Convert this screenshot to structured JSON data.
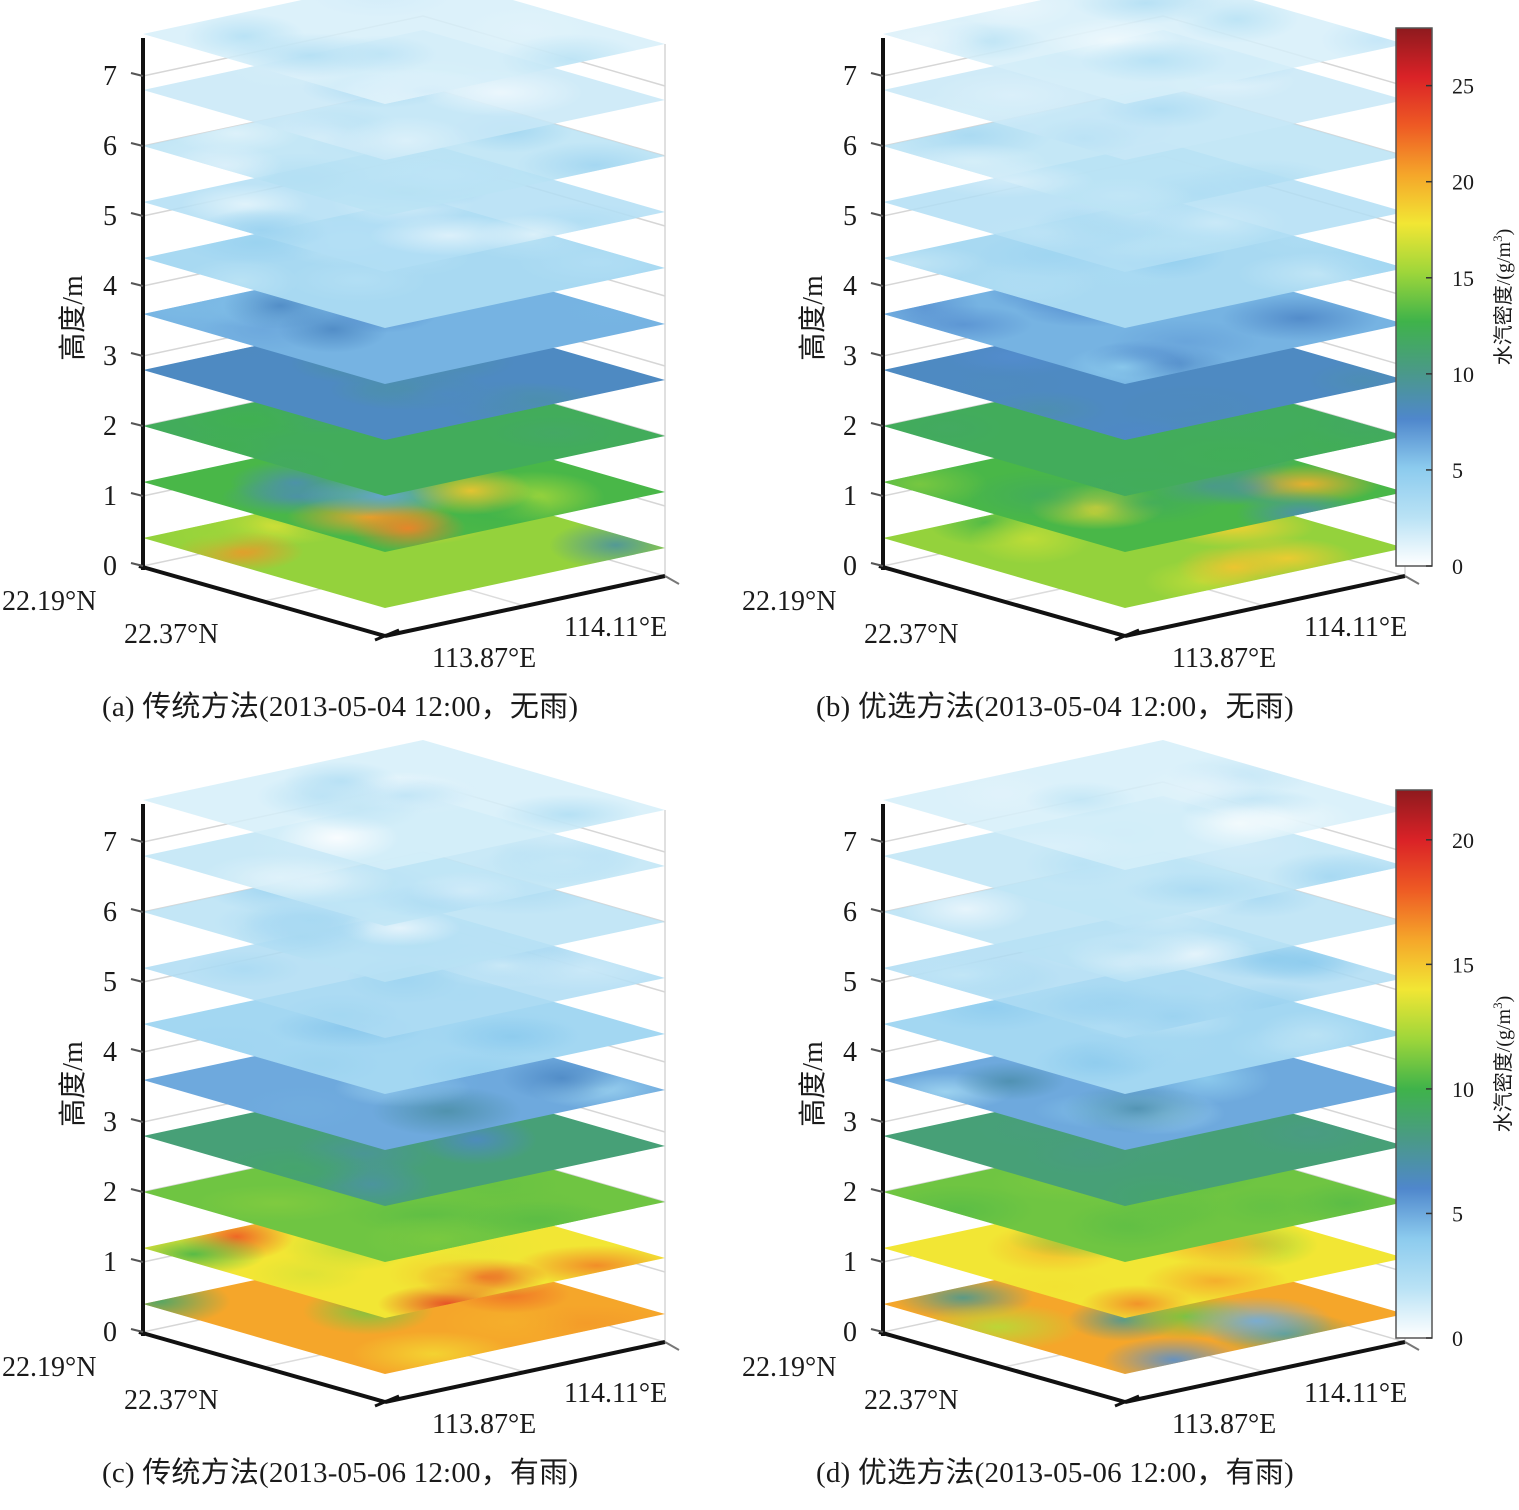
{
  "figure": {
    "colormap": [
      "#ffffff",
      "#b9e2f5",
      "#8ccbee",
      "#4f87cc",
      "#4a9a86",
      "#3fb34a",
      "#9ed63a",
      "#f2e634",
      "#f5a62a",
      "#ee5a24",
      "#da2227",
      "#8e1a1e"
    ]
  },
  "chart_data": [
    {
      "id": "a",
      "type": "heatmap",
      "subtype": "3d-stacked-slices",
      "caption": "(a) 传统方法(2013-05-04 12:00，无雨)",
      "method": "传统方法",
      "datetime": "2013-05-04 12:00",
      "weather": "无雨",
      "zlabel": "高度/m",
      "z_ticks": [
        "0",
        "1",
        "2",
        "3",
        "4",
        "5",
        "6",
        "7"
      ],
      "zlim": [
        0,
        7.6
      ],
      "lat_ticks": [
        "22.19°N",
        "22.37°N"
      ],
      "lon_ticks": [
        "113.87°E",
        "114.11°E"
      ],
      "clim": [
        0,
        28
      ],
      "layers": [
        {
          "z": 0.4,
          "mean": 15,
          "range": [
            8,
            26
          ],
          "note": "green-yellow with red hot spots, one blue low"
        },
        {
          "z": 1.2,
          "mean": 13,
          "range": [
            6,
            22
          ],
          "note": "green-yellow with blue low and orange spot"
        },
        {
          "z": 2.0,
          "mean": 12,
          "range": [
            11.5,
            12.5
          ]
        },
        {
          "z": 2.8,
          "mean": 8,
          "range": [
            7,
            9.5
          ]
        },
        {
          "z": 3.6,
          "mean": 6,
          "range": [
            4,
            8
          ]
        },
        {
          "z": 4.4,
          "mean": 3.5,
          "range": [
            2,
            5
          ]
        },
        {
          "z": 5.2,
          "mean": 3,
          "range": [
            1,
            4.5
          ]
        },
        {
          "z": 6.0,
          "mean": 2.5,
          "range": [
            1,
            4
          ]
        },
        {
          "z": 6.8,
          "mean": 2,
          "range": [
            0.5,
            3.5
          ]
        },
        {
          "z": 7.6,
          "mean": 1.5,
          "range": [
            0,
            3
          ]
        }
      ]
    },
    {
      "id": "b",
      "type": "heatmap",
      "subtype": "3d-stacked-slices",
      "caption": "(b) 优选方法(2013-05-04 12:00，无雨)",
      "method": "优选方法",
      "datetime": "2013-05-04 12:00",
      "weather": "无雨",
      "zlabel": "高度/m",
      "z_ticks": [
        "0",
        "1",
        "2",
        "3",
        "4",
        "5",
        "6",
        "7"
      ],
      "zlim": [
        0,
        7.6
      ],
      "lat_ticks": [
        "22.19°N",
        "22.37°N"
      ],
      "lon_ticks": [
        "113.87°E",
        "114.11°E"
      ],
      "clim": [
        0,
        28
      ],
      "layers": [
        {
          "z": 0.4,
          "mean": 15,
          "range": [
            10,
            25
          ]
        },
        {
          "z": 1.2,
          "mean": 13,
          "range": [
            8,
            21
          ]
        },
        {
          "z": 2.0,
          "mean": 12,
          "range": [
            11.5,
            12.5
          ]
        },
        {
          "z": 2.8,
          "mean": 8,
          "range": [
            7,
            9.5
          ]
        },
        {
          "z": 3.6,
          "mean": 6,
          "range": [
            4,
            8
          ]
        },
        {
          "z": 4.4,
          "mean": 3.5,
          "range": [
            2,
            5
          ]
        },
        {
          "z": 5.2,
          "mean": 3,
          "range": [
            1.5,
            4.5
          ]
        },
        {
          "z": 6.0,
          "mean": 2.5,
          "range": [
            1,
            4
          ]
        },
        {
          "z": 6.8,
          "mean": 2,
          "range": [
            0.5,
            3.5
          ]
        },
        {
          "z": 7.6,
          "mean": 1.5,
          "range": [
            0,
            3
          ]
        }
      ]
    },
    {
      "id": "c",
      "type": "heatmap",
      "subtype": "3d-stacked-slices",
      "caption": "(c) 传统方法(2013-05-06 12:00，有雨)",
      "method": "传统方法",
      "datetime": "2013-05-06 12:00",
      "weather": "有雨",
      "zlabel": "高度/m",
      "z_ticks": [
        "0",
        "1",
        "2",
        "3",
        "4",
        "5",
        "6",
        "7"
      ],
      "zlim": [
        0,
        7.6
      ],
      "lat_ticks": [
        "22.19°N",
        "22.37°N"
      ],
      "lon_ticks": [
        "113.87°E",
        "114.11°E"
      ],
      "clim": [
        0,
        22
      ],
      "layers": [
        {
          "z": 0.4,
          "mean": 16,
          "range": [
            4,
            20
          ],
          "note": "orange-red with blue/green lows"
        },
        {
          "z": 1.2,
          "mean": 14,
          "range": [
            9,
            19
          ]
        },
        {
          "z": 2.0,
          "mean": 11,
          "range": [
            10.5,
            11.5
          ]
        },
        {
          "z": 2.8,
          "mean": 8.5,
          "range": [
            6,
            10
          ]
        },
        {
          "z": 3.6,
          "mean": 5,
          "range": [
            3,
            7
          ]
        },
        {
          "z": 4.4,
          "mean": 3,
          "range": [
            1.5,
            4.5
          ]
        },
        {
          "z": 5.2,
          "mean": 2.5,
          "range": [
            1,
            4
          ]
        },
        {
          "z": 6.0,
          "mean": 2,
          "range": [
            0.5,
            3.5
          ]
        },
        {
          "z": 6.8,
          "mean": 1.8,
          "range": [
            0.5,
            3
          ]
        },
        {
          "z": 7.6,
          "mean": 1.2,
          "range": [
            0,
            2.5
          ]
        }
      ]
    },
    {
      "id": "d",
      "type": "heatmap",
      "subtype": "3d-stacked-slices",
      "caption": "(d) 优选方法(2013-05-06 12:00，有雨)",
      "method": "优选方法",
      "datetime": "2013-05-06 12:00",
      "weather": "有雨",
      "zlabel": "高度/m",
      "z_ticks": [
        "0",
        "1",
        "2",
        "3",
        "4",
        "5",
        "6",
        "7"
      ],
      "zlim": [
        0,
        7.6
      ],
      "lat_ticks": [
        "22.19°N",
        "22.37°N"
      ],
      "lon_ticks": [
        "113.87°E",
        "114.11°E"
      ],
      "clim": [
        0,
        22
      ],
      "layers": [
        {
          "z": 0.4,
          "mean": 16,
          "range": [
            4,
            19
          ]
        },
        {
          "z": 1.2,
          "mean": 14,
          "range": [
            10,
            17
          ]
        },
        {
          "z": 2.0,
          "mean": 11,
          "range": [
            10.5,
            11.5
          ]
        },
        {
          "z": 2.8,
          "mean": 8.5,
          "range": [
            8,
            9
          ]
        },
        {
          "z": 3.6,
          "mean": 5,
          "range": [
            3,
            7
          ]
        },
        {
          "z": 4.4,
          "mean": 3,
          "range": [
            1.5,
            4.5
          ]
        },
        {
          "z": 5.2,
          "mean": 2.5,
          "range": [
            1,
            4
          ]
        },
        {
          "z": 6.0,
          "mean": 2,
          "range": [
            0.5,
            3.5
          ]
        },
        {
          "z": 6.8,
          "mean": 1.8,
          "range": [
            0.5,
            3
          ]
        },
        {
          "z": 7.6,
          "mean": 1.2,
          "range": [
            0,
            2.5
          ]
        }
      ]
    }
  ],
  "colorbars": [
    {
      "id": "top",
      "applies_to": [
        "a",
        "b"
      ],
      "ticks": [
        "0",
        "5",
        "10",
        "15",
        "20",
        "25"
      ],
      "tick_values": [
        0,
        5,
        10,
        15,
        20,
        25
      ],
      "clim": [
        0,
        28
      ],
      "label": "水汽密度/(g/m",
      "label_sup": "3",
      "label_close": ")"
    },
    {
      "id": "bottom",
      "applies_to": [
        "c",
        "d"
      ],
      "ticks": [
        "0",
        "5",
        "10",
        "15",
        "20"
      ],
      "tick_values": [
        0,
        5,
        10,
        15,
        20
      ],
      "clim": [
        0,
        22
      ],
      "label": "水汽密度/(g/m",
      "label_sup": "3",
      "label_close": ")"
    }
  ]
}
